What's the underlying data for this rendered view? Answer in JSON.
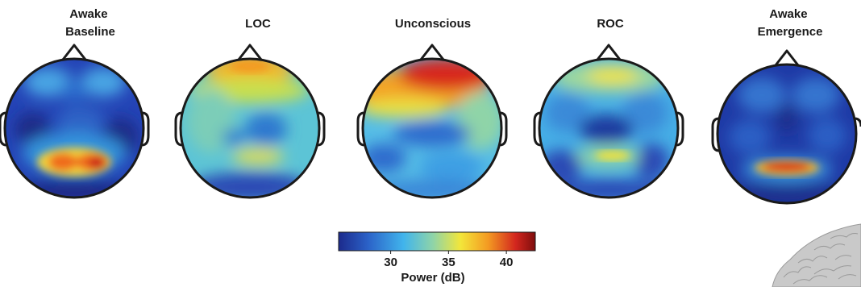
{
  "panels": [
    {
      "title_lines": [
        "Awake",
        "Baseline"
      ]
    },
    {
      "title_lines": [
        "LOC"
      ]
    },
    {
      "title_lines": [
        "Unconscious"
      ]
    },
    {
      "title_lines": [
        "ROC"
      ]
    },
    {
      "title_lines": [
        "Awake",
        "Emergence"
      ]
    }
  ],
  "colorbar": {
    "label": "Power (dB)",
    "ticks": [
      "30",
      "35",
      "40"
    ],
    "range": [
      25.5,
      42.5
    ],
    "colors": [
      "#1c2a8c",
      "#2b62c8",
      "#41b4ec",
      "#8fd4a8",
      "#f3e63a",
      "#f39a22",
      "#d3261e",
      "#7e0d0d"
    ]
  },
  "colors": {
    "head_outline": "#1a1a1a",
    "text": "#1a1a1a",
    "brain_model": "#c8c8c8"
  }
}
